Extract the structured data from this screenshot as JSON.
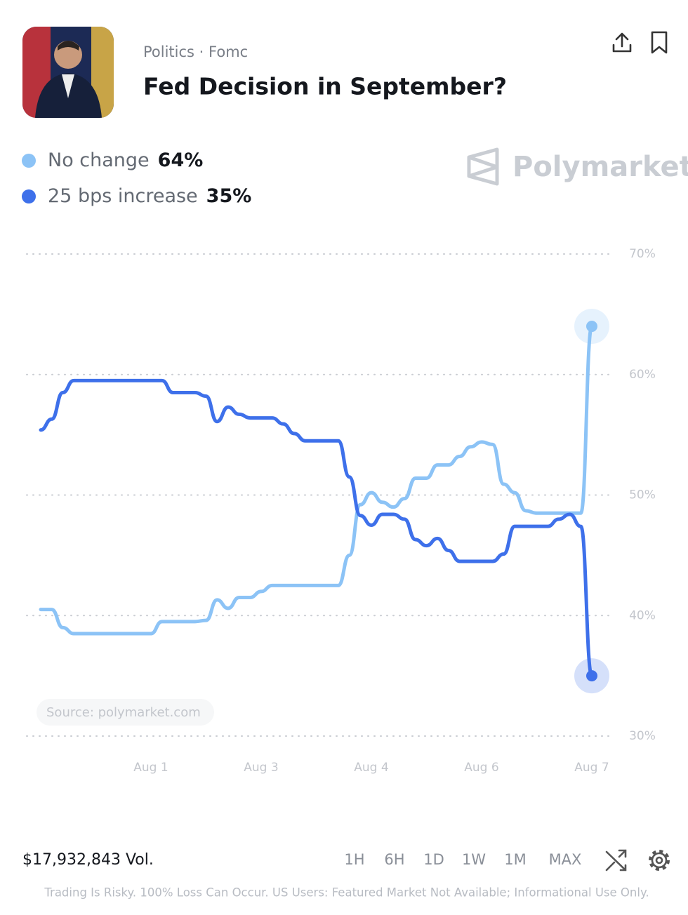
{
  "header": {
    "category": "Politics · Fomc",
    "title": "Fed Decision in September?"
  },
  "brand": "Polymarket",
  "source": "Source: polymarket.com",
  "volume": "$17,932,843 Vol.",
  "ranges": [
    "1H",
    "6H",
    "1D",
    "1W",
    "1M",
    "MAX"
  ],
  "disclaimer": "Trading Is Risky. 100% Loss Can Occur. US Users: Featured Market Not Available; Informational Use Only.",
  "chart_data": {
    "type": "line",
    "x": [
      null,
      null,
      null,
      null,
      null,
      null,
      null,
      null,
      null,
      null,
      "Aug 1",
      null,
      null,
      null,
      null,
      null,
      null,
      null,
      null,
      null,
      "Aug 3",
      null,
      null,
      null,
      null,
      null,
      null,
      null,
      null,
      null,
      "Aug 4",
      null,
      null,
      null,
      null,
      null,
      null,
      null,
      null,
      null,
      "Aug 6",
      null,
      null,
      null,
      null,
      null,
      null,
      null,
      null,
      null,
      "Aug 7"
    ],
    "series": [
      {
        "name": "No change",
        "color": "#8cc3f6",
        "current": "64%",
        "values": [
          40.5,
          40.5,
          39,
          38.5,
          38.5,
          38.5,
          38.5,
          38.5,
          38.5,
          38.5,
          38.5,
          39.5,
          39.5,
          39.5,
          39.5,
          39.6,
          41.3,
          40.6,
          41.5,
          41.5,
          42,
          42.5,
          42.5,
          42.5,
          42.5,
          42.5,
          42.5,
          42.5,
          45,
          49.2,
          50.2,
          49.4,
          49,
          49.7,
          51.4,
          51.4,
          52.5,
          52.5,
          53.2,
          54,
          54.4,
          54.2,
          50.9,
          50.2,
          48.7,
          48.5,
          48.5,
          48.5,
          48.5,
          48.5,
          64
        ]
      },
      {
        "name": "25 bps increase",
        "color": "#3e70ea",
        "current": "35%",
        "values": [
          55.4,
          56.3,
          58.5,
          59.5,
          59.5,
          59.5,
          59.5,
          59.5,
          59.5,
          59.5,
          59.5,
          59.5,
          58.5,
          58.5,
          58.5,
          58.2,
          56.1,
          57.3,
          56.7,
          56.4,
          56.4,
          56.4,
          55.9,
          55.1,
          54.5,
          54.5,
          54.5,
          54.5,
          51.5,
          48.3,
          47.5,
          48.4,
          48.4,
          48,
          46.3,
          45.8,
          46.4,
          45.4,
          44.5,
          44.5,
          44.5,
          44.5,
          45.1,
          47.4,
          47.4,
          47.4,
          47.4,
          48,
          48.4,
          47.4,
          35
        ]
      }
    ],
    "ylim": [
      30,
      70
    ],
    "yticks": [
      {
        "value": 30,
        "label": "30%"
      },
      {
        "value": 40,
        "label": "40%"
      },
      {
        "value": 50,
        "label": "50%"
      },
      {
        "value": 60,
        "label": "60%"
      },
      {
        "value": 70,
        "label": "70%"
      }
    ],
    "grid": true
  }
}
